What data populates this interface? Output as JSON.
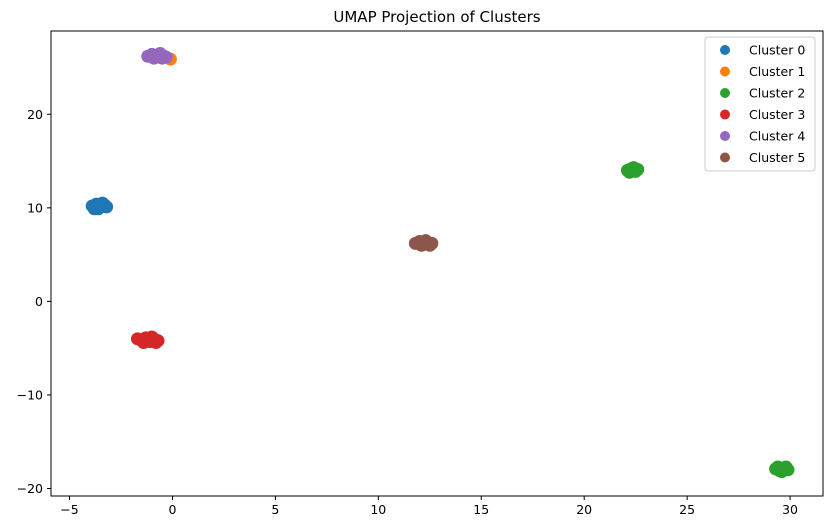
{
  "chart_data": {
    "type": "scatter",
    "title": "UMAP Projection of Clusters",
    "xlabel": "",
    "ylabel": "",
    "xlim": [
      -5.9,
      31.6
    ],
    "ylim": [
      -20.8,
      28.9
    ],
    "xticks": [
      -5,
      0,
      5,
      10,
      15,
      20,
      25,
      30
    ],
    "yticks": [
      -20,
      -10,
      0,
      10,
      20
    ],
    "grid": false,
    "legend_position": "top-right",
    "series": [
      {
        "name": "Cluster 0",
        "color": "#1f77b4",
        "points": [
          [
            -3.9,
            10.2
          ],
          [
            -3.7,
            10.4
          ],
          [
            -3.5,
            10.1
          ],
          [
            -3.3,
            10.3
          ],
          [
            -3.6,
            9.9
          ],
          [
            -3.8,
            9.9
          ],
          [
            -3.2,
            10.1
          ],
          [
            -3.4,
            10.5
          ]
        ]
      },
      {
        "name": "Cluster 1",
        "color": "#ff7f0e",
        "points": [
          [
            -0.1,
            25.9
          ]
        ]
      },
      {
        "name": "Cluster 2",
        "color": "#2ca02c",
        "points": [
          [
            22.1,
            14.0
          ],
          [
            22.3,
            14.2
          ],
          [
            22.5,
            13.9
          ],
          [
            22.4,
            14.3
          ],
          [
            22.2,
            13.8
          ],
          [
            22.6,
            14.1
          ],
          [
            29.3,
            -17.9
          ],
          [
            29.5,
            -18.1
          ],
          [
            29.7,
            -17.8
          ],
          [
            29.9,
            -18.0
          ],
          [
            29.6,
            -18.2
          ],
          [
            29.4,
            -17.7
          ],
          [
            29.8,
            -17.7
          ]
        ]
      },
      {
        "name": "Cluster 3",
        "color": "#d62728",
        "points": [
          [
            -1.7,
            -4.0
          ],
          [
            -1.5,
            -4.2
          ],
          [
            -1.3,
            -3.9
          ],
          [
            -1.1,
            -4.3
          ],
          [
            -0.9,
            -4.0
          ],
          [
            -0.7,
            -4.2
          ],
          [
            -1.4,
            -4.4
          ],
          [
            -1.0,
            -3.8
          ],
          [
            -1.2,
            -4.1
          ],
          [
            -0.8,
            -4.4
          ]
        ]
      },
      {
        "name": "Cluster 4",
        "color": "#9467bd",
        "points": [
          [
            -1.2,
            26.2
          ],
          [
            -1.0,
            26.4
          ],
          [
            -0.8,
            26.1
          ],
          [
            -0.6,
            26.5
          ],
          [
            -0.4,
            26.2
          ],
          [
            -0.9,
            26.0
          ],
          [
            -0.5,
            26.0
          ],
          [
            -0.7,
            26.3
          ],
          [
            -0.3,
            26.1
          ]
        ]
      },
      {
        "name": "Cluster 5",
        "color": "#8c564b",
        "points": [
          [
            11.8,
            6.2
          ],
          [
            12.0,
            6.4
          ],
          [
            12.2,
            6.1
          ],
          [
            12.4,
            6.3
          ],
          [
            12.6,
            6.2
          ],
          [
            12.1,
            6.0
          ],
          [
            12.3,
            6.5
          ],
          [
            12.5,
            6.0
          ]
        ]
      }
    ]
  }
}
